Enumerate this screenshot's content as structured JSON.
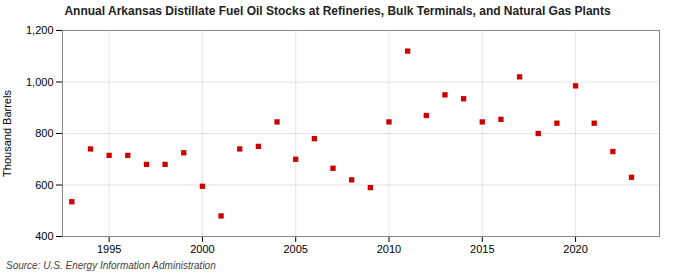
{
  "chart_data": {
    "type": "scatter",
    "title": "Annual Arkansas Distillate Fuel Oil Stocks at Refineries, Bulk Terminals, and Natural Gas Plants",
    "ylabel": "Thousand Barrels",
    "source": "Source: U.S. Energy Information Administration",
    "x": [
      1993,
      1994,
      1995,
      1996,
      1997,
      1998,
      1999,
      2000,
      2001,
      2002,
      2003,
      2004,
      2005,
      2006,
      2007,
      2008,
      2009,
      2010,
      2011,
      2012,
      2013,
      2014,
      2015,
      2016,
      2017,
      2018,
      2019,
      2020,
      2021,
      2022,
      2023
    ],
    "values": [
      535,
      740,
      715,
      715,
      680,
      680,
      725,
      595,
      480,
      740,
      750,
      845,
      700,
      780,
      665,
      620,
      590,
      845,
      1120,
      870,
      950,
      935,
      845,
      855,
      1020,
      800,
      840,
      985,
      840,
      730,
      630
    ],
    "color": "#cc0000",
    "marker": "square",
    "xlim": [
      1992.5,
      2024.5
    ],
    "xticks": [
      1995,
      2000,
      2005,
      2010,
      2015,
      2020
    ],
    "ylim": [
      400,
      1200
    ],
    "yticks": [
      400,
      600,
      800,
      {
        "value": 1000,
        "label": "1,000"
      },
      {
        "value": 1200,
        "label": "1,200"
      }
    ],
    "grid": true
  }
}
